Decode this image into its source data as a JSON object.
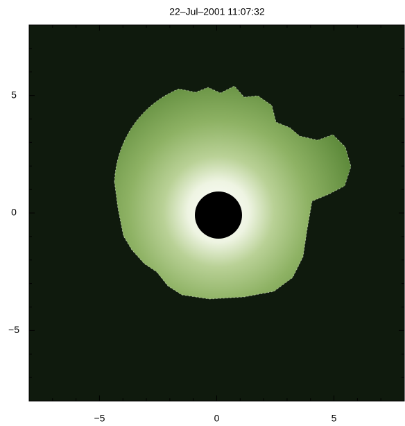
{
  "chart_data": {
    "type": "image",
    "title": "22–Jul–2001 11:07:32",
    "xlim": [
      -8,
      8
    ],
    "ylim": [
      -8,
      8
    ],
    "xticks": [
      {
        "value": -5,
        "label": "−5"
      },
      0,
      5
    ],
    "yticks": [
      {
        "value": -5,
        "label": "−5"
      },
      0,
      5
    ],
    "xminorticks": [
      -7,
      -6,
      -4,
      -3,
      -2,
      -1,
      1,
      2,
      3,
      4,
      6,
      7
    ],
    "yminorticks": [
      -7,
      -6,
      -4,
      -3,
      -2,
      -1,
      1,
      2,
      3,
      4,
      6,
      7
    ]
  }
}
